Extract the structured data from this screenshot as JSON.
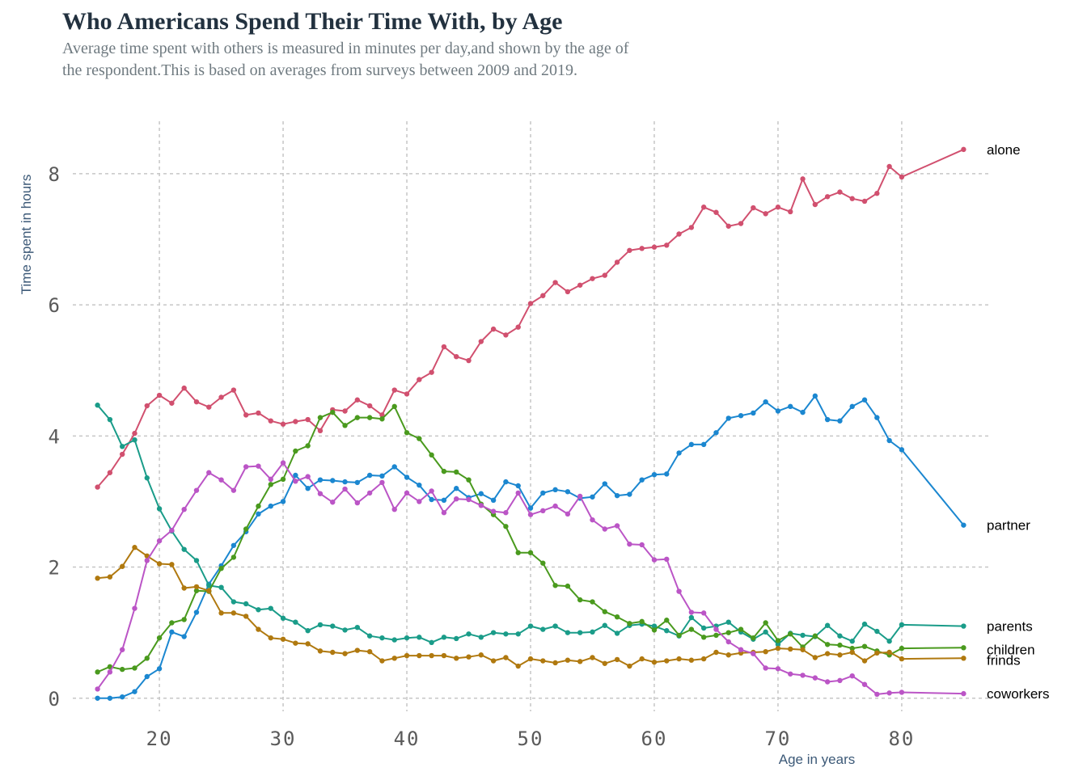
{
  "chart_data": {
    "type": "line",
    "title": "Who Americans Spend Their Time With, by Age",
    "subtitle": "Average time spent with others is measured in minutes per day,and shown by the age of the respondent.This is based on averages from surveys between 2009 and 2019.",
    "xlabel": "Age in years",
    "ylabel": "Time spent in hours",
    "xlim": [
      13,
      87
    ],
    "ylim": [
      -0.2,
      8.8
    ],
    "xticks": [
      20,
      30,
      40,
      50,
      60,
      70,
      80
    ],
    "yticks": [
      0,
      2,
      4,
      6,
      8
    ],
    "grid": true,
    "legend": "direct labels at line ends (right)",
    "x": [
      15,
      16,
      17,
      18,
      19,
      20,
      21,
      22,
      23,
      24,
      25,
      26,
      27,
      28,
      29,
      30,
      31,
      32,
      33,
      34,
      35,
      36,
      37,
      38,
      39,
      40,
      41,
      42,
      43,
      44,
      45,
      46,
      47,
      48,
      49,
      50,
      51,
      52,
      53,
      54,
      55,
      56,
      57,
      58,
      59,
      60,
      61,
      62,
      63,
      64,
      65,
      66,
      67,
      68,
      69,
      70,
      71,
      72,
      73,
      74,
      75,
      76,
      77,
      78,
      79,
      80,
      85
    ],
    "series": [
      {
        "name": "alone",
        "color": "#d1506f",
        "values": [
          3.22,
          3.44,
          3.72,
          4.04,
          4.46,
          4.62,
          4.5,
          4.73,
          4.52,
          4.44,
          4.59,
          4.7,
          4.32,
          4.35,
          4.23,
          4.18,
          4.22,
          4.25,
          4.08,
          4.4,
          4.38,
          4.55,
          4.46,
          4.32,
          4.7,
          4.64,
          4.86,
          4.97,
          5.36,
          5.21,
          5.15,
          5.44,
          5.63,
          5.54,
          5.66,
          6.02,
          6.14,
          6.34,
          6.2,
          6.3,
          6.4,
          6.45,
          6.65,
          6.83,
          6.86,
          6.88,
          6.91,
          7.08,
          7.18,
          7.49,
          7.41,
          7.2,
          7.24,
          7.48,
          7.39,
          7.49,
          7.42,
          7.92,
          7.53,
          7.65,
          7.72,
          7.62,
          7.58,
          7.7,
          8.11,
          7.95,
          8.37
        ]
      },
      {
        "name": "partner",
        "color": "#1b87d0",
        "values": [
          0.0,
          0.0,
          0.02,
          0.1,
          0.33,
          0.45,
          1.01,
          0.94,
          1.31,
          1.74,
          2.02,
          2.33,
          2.54,
          2.81,
          2.93,
          3.0,
          3.4,
          3.2,
          3.33,
          3.32,
          3.3,
          3.29,
          3.4,
          3.39,
          3.53,
          3.37,
          3.25,
          3.03,
          3.02,
          3.2,
          3.06,
          3.12,
          3.02,
          3.3,
          3.24,
          2.9,
          3.13,
          3.18,
          3.15,
          3.05,
          3.07,
          3.27,
          3.09,
          3.11,
          3.33,
          3.41,
          3.42,
          3.74,
          3.87,
          3.87,
          4.05,
          4.27,
          4.31,
          4.35,
          4.52,
          4.38,
          4.45,
          4.36,
          4.61,
          4.25,
          4.23,
          4.45,
          4.55,
          4.28,
          3.93,
          3.79,
          2.64
        ]
      },
      {
        "name": "parents",
        "color": "#1a9c89",
        "values": [
          4.47,
          4.25,
          3.84,
          3.94,
          3.36,
          2.89,
          2.55,
          2.27,
          2.1,
          1.72,
          1.69,
          1.47,
          1.44,
          1.35,
          1.37,
          1.22,
          1.16,
          1.03,
          1.12,
          1.1,
          1.04,
          1.08,
          0.95,
          0.92,
          0.89,
          0.92,
          0.93,
          0.85,
          0.93,
          0.91,
          0.98,
          0.93,
          1.0,
          0.98,
          0.98,
          1.1,
          1.05,
          1.1,
          1.0,
          1.0,
          1.01,
          1.11,
          0.99,
          1.11,
          1.13,
          1.1,
          1.03,
          0.95,
          1.23,
          1.07,
          1.1,
          1.16,
          1.01,
          0.9,
          1.01,
          0.82,
          0.99,
          0.96,
          0.94,
          1.11,
          0.95,
          0.87,
          1.13,
          1.02,
          0.87,
          1.12,
          1.1
        ]
      },
      {
        "name": "children",
        "color": "#4a9a1e",
        "values": [
          0.4,
          0.48,
          0.44,
          0.46,
          0.61,
          0.92,
          1.15,
          1.2,
          1.64,
          1.63,
          1.98,
          2.15,
          2.58,
          2.93,
          3.26,
          3.34,
          3.77,
          3.85,
          4.28,
          4.36,
          4.16,
          4.28,
          4.28,
          4.26,
          4.45,
          4.05,
          3.96,
          3.71,
          3.46,
          3.45,
          3.33,
          2.96,
          2.8,
          2.62,
          2.22,
          2.22,
          2.06,
          1.72,
          1.71,
          1.5,
          1.47,
          1.32,
          1.24,
          1.14,
          1.17,
          1.04,
          1.19,
          0.96,
          1.05,
          0.93,
          0.96,
          1.0,
          1.05,
          0.92,
          1.15,
          0.88,
          0.98,
          0.78,
          0.95,
          0.82,
          0.81,
          0.76,
          0.79,
          0.72,
          0.66,
          0.76,
          0.77
        ]
      },
      {
        "name": "frinds",
        "color": "#b0790f",
        "values": [
          1.83,
          1.85,
          2.01,
          2.3,
          2.17,
          2.05,
          2.04,
          1.68,
          1.7,
          1.64,
          1.3,
          1.3,
          1.25,
          1.05,
          0.92,
          0.9,
          0.84,
          0.83,
          0.72,
          0.7,
          0.68,
          0.73,
          0.71,
          0.57,
          0.61,
          0.65,
          0.65,
          0.65,
          0.65,
          0.61,
          0.63,
          0.66,
          0.57,
          0.62,
          0.49,
          0.6,
          0.57,
          0.54,
          0.58,
          0.56,
          0.62,
          0.53,
          0.59,
          0.49,
          0.6,
          0.55,
          0.57,
          0.6,
          0.58,
          0.6,
          0.7,
          0.66,
          0.69,
          0.7,
          0.71,
          0.76,
          0.75,
          0.74,
          0.62,
          0.68,
          0.66,
          0.7,
          0.57,
          0.69,
          0.7,
          0.6,
          0.61
        ]
      },
      {
        "name": "coworkers",
        "color": "#bb55c6",
        "values": [
          0.14,
          0.4,
          0.74,
          1.37,
          2.1,
          2.4,
          2.56,
          2.88,
          3.17,
          3.44,
          3.33,
          3.17,
          3.53,
          3.54,
          3.34,
          3.59,
          3.31,
          3.38,
          3.12,
          2.99,
          3.19,
          2.98,
          3.13,
          3.29,
          2.88,
          3.13,
          3.0,
          3.16,
          2.83,
          3.04,
          3.03,
          2.94,
          2.85,
          2.83,
          3.13,
          2.8,
          2.86,
          2.93,
          2.81,
          3.08,
          2.72,
          2.58,
          2.63,
          2.35,
          2.34,
          2.11,
          2.12,
          1.63,
          1.31,
          1.3,
          1.05,
          0.86,
          0.74,
          0.68,
          0.46,
          0.45,
          0.37,
          0.35,
          0.31,
          0.25,
          0.27,
          0.34,
          0.21,
          0.06,
          0.08,
          0.09,
          0.07
        ]
      }
    ]
  }
}
